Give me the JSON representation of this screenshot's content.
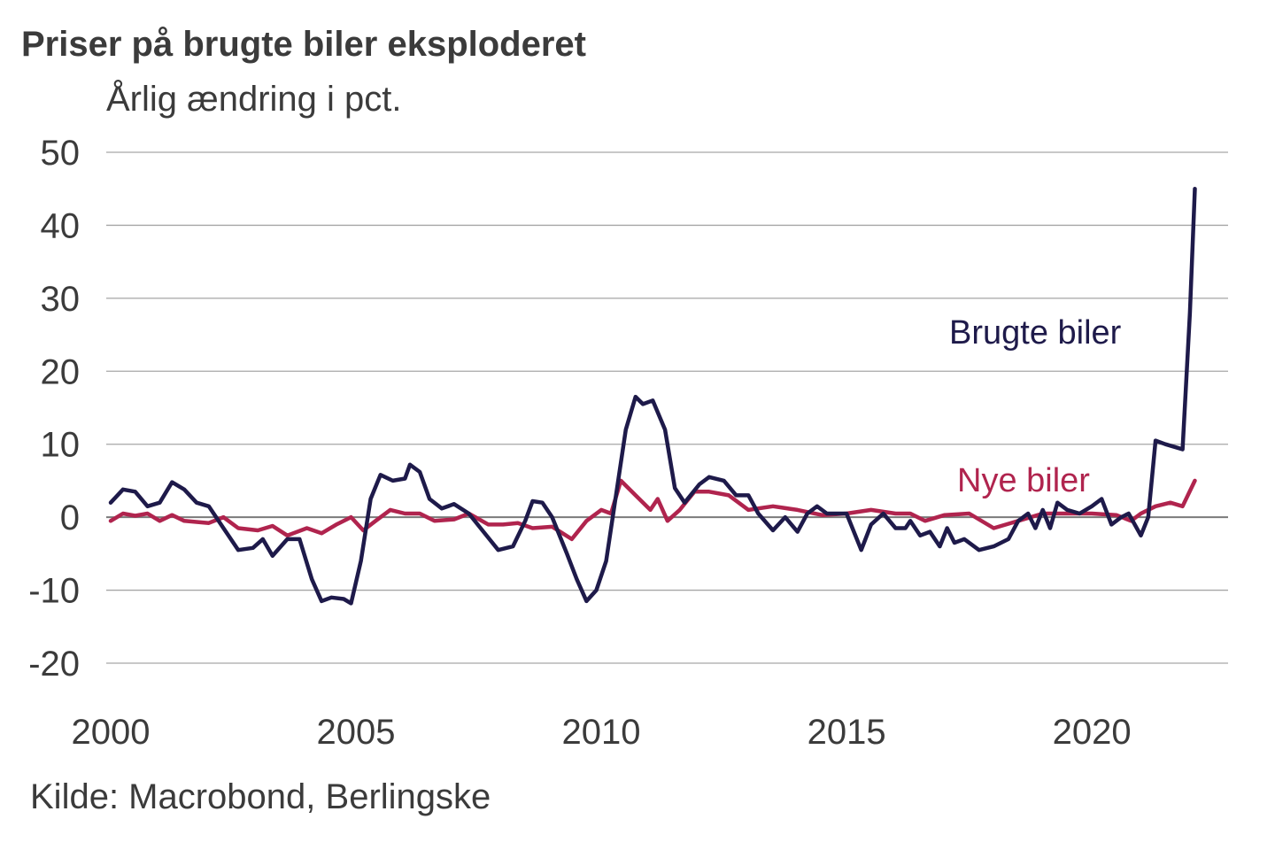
{
  "title": "Priser på brugte biler eksploderet",
  "subtitle": "Årlig ændring i pct.",
  "source": "Kilde: Macrobond, Berlingske",
  "chart_data": {
    "type": "line",
    "title": "Priser på brugte biler eksploderet",
    "ylabel": "Årlig ændring i pct.",
    "xlabel": "",
    "ylim": [
      -20,
      50
    ],
    "xlim": [
      2000,
      2022.2
    ],
    "y_ticks": [
      50,
      40,
      30,
      20,
      10,
      0,
      -10,
      -20
    ],
    "y_tick_labels": [
      "50",
      "40",
      "30",
      "20",
      "10",
      "0",
      "-10",
      "-20"
    ],
    "x_ticks": [
      2000,
      2005,
      2010,
      2015,
      2020
    ],
    "x_tick_labels": [
      "2000",
      "2005",
      "2010",
      "2015",
      "2020"
    ],
    "grid": "horizontal",
    "series": [
      {
        "name": "Brugte biler",
        "color": "#1e1a4a",
        "points": [
          [
            2000.0,
            2
          ],
          [
            2000.25,
            3.8
          ],
          [
            2000.5,
            3.5
          ],
          [
            2000.75,
            1.5
          ],
          [
            2001.0,
            2
          ],
          [
            2001.25,
            4.8
          ],
          [
            2001.5,
            3.8
          ],
          [
            2001.75,
            2
          ],
          [
            2002.0,
            1.5
          ],
          [
            2002.3,
            -1.5
          ],
          [
            2002.6,
            -4.5
          ],
          [
            2002.9,
            -4.2
          ],
          [
            2003.1,
            -3
          ],
          [
            2003.3,
            -5.3
          ],
          [
            2003.6,
            -3
          ],
          [
            2003.85,
            -3
          ],
          [
            2004.1,
            -8.5
          ],
          [
            2004.3,
            -11.5
          ],
          [
            2004.5,
            -11
          ],
          [
            2004.75,
            -11.2
          ],
          [
            2004.9,
            -11.8
          ],
          [
            2005.1,
            -6
          ],
          [
            2005.3,
            2.5
          ],
          [
            2005.5,
            5.8
          ],
          [
            2005.75,
            5
          ],
          [
            2006.0,
            5.3
          ],
          [
            2006.1,
            7.2
          ],
          [
            2006.3,
            6.2
          ],
          [
            2006.5,
            2.5
          ],
          [
            2006.75,
            1.2
          ],
          [
            2007.0,
            1.8
          ],
          [
            2007.3,
            0.5
          ],
          [
            2007.6,
            -2
          ],
          [
            2007.9,
            -4.5
          ],
          [
            2008.2,
            -4
          ],
          [
            2008.45,
            -0.5
          ],
          [
            2008.6,
            2.2
          ],
          [
            2008.8,
            2
          ],
          [
            2009.0,
            0
          ],
          [
            2009.3,
            -5
          ],
          [
            2009.5,
            -8.5
          ],
          [
            2009.7,
            -11.5
          ],
          [
            2009.9,
            -10
          ],
          [
            2010.1,
            -6
          ],
          [
            2010.3,
            3
          ],
          [
            2010.5,
            12
          ],
          [
            2010.7,
            16.5
          ],
          [
            2010.85,
            15.5
          ],
          [
            2011.05,
            16
          ],
          [
            2011.3,
            12
          ],
          [
            2011.5,
            4
          ],
          [
            2011.7,
            2
          ],
          [
            2012.0,
            4.5
          ],
          [
            2012.2,
            5.5
          ],
          [
            2012.5,
            5
          ],
          [
            2012.75,
            3
          ],
          [
            2013.0,
            3
          ],
          [
            2013.2,
            0.5
          ],
          [
            2013.5,
            -1.8
          ],
          [
            2013.75,
            0
          ],
          [
            2014.0,
            -2
          ],
          [
            2014.2,
            0.5
          ],
          [
            2014.4,
            1.5
          ],
          [
            2014.6,
            0.5
          ],
          [
            2015.0,
            0.5
          ],
          [
            2015.3,
            -4.5
          ],
          [
            2015.5,
            -1
          ],
          [
            2015.75,
            0.5
          ],
          [
            2016.0,
            -1.5
          ],
          [
            2016.2,
            -1.5
          ],
          [
            2016.3,
            -0.5
          ],
          [
            2016.5,
            -2.5
          ],
          [
            2016.7,
            -2
          ],
          [
            2016.9,
            -4
          ],
          [
            2017.05,
            -1.5
          ],
          [
            2017.2,
            -3.5
          ],
          [
            2017.4,
            -3
          ],
          [
            2017.7,
            -4.5
          ],
          [
            2018.0,
            -4
          ],
          [
            2018.3,
            -3
          ],
          [
            2018.5,
            -0.5
          ],
          [
            2018.7,
            0.5
          ],
          [
            2018.85,
            -1.5
          ],
          [
            2019.0,
            1
          ],
          [
            2019.15,
            -1.5
          ],
          [
            2019.3,
            2
          ],
          [
            2019.5,
            1
          ],
          [
            2019.75,
            0.5
          ],
          [
            2020.0,
            1.5
          ],
          [
            2020.2,
            2.5
          ],
          [
            2020.4,
            -1
          ],
          [
            2020.6,
            0
          ],
          [
            2020.75,
            0.5
          ],
          [
            2021.0,
            -2.5
          ],
          [
            2021.15,
            0
          ],
          [
            2021.3,
            10.5
          ],
          [
            2021.5,
            10
          ],
          [
            2021.75,
            9.5
          ],
          [
            2021.85,
            9.3
          ],
          [
            2022.0,
            28
          ],
          [
            2022.1,
            45
          ]
        ]
      },
      {
        "name": "Nye biler",
        "color": "#b0244e",
        "points": [
          [
            2000.0,
            -0.5
          ],
          [
            2000.25,
            0.5
          ],
          [
            2000.5,
            0.2
          ],
          [
            2000.75,
            0.5
          ],
          [
            2001.0,
            -0.5
          ],
          [
            2001.25,
            0.3
          ],
          [
            2001.5,
            -0.5
          ],
          [
            2002.0,
            -0.8
          ],
          [
            2002.3,
            0
          ],
          [
            2002.6,
            -1.5
          ],
          [
            2003.0,
            -1.8
          ],
          [
            2003.3,
            -1.2
          ],
          [
            2003.6,
            -2.5
          ],
          [
            2004.0,
            -1.5
          ],
          [
            2004.3,
            -2.2
          ],
          [
            2004.6,
            -1
          ],
          [
            2004.9,
            0
          ],
          [
            2005.15,
            -1.8
          ],
          [
            2005.4,
            -0.5
          ],
          [
            2005.7,
            1
          ],
          [
            2006.0,
            0.5
          ],
          [
            2006.3,
            0.5
          ],
          [
            2006.6,
            -0.5
          ],
          [
            2007.0,
            -0.3
          ],
          [
            2007.3,
            0.5
          ],
          [
            2007.7,
            -1
          ],
          [
            2008.0,
            -1
          ],
          [
            2008.3,
            -0.8
          ],
          [
            2008.6,
            -1.5
          ],
          [
            2009.0,
            -1.3
          ],
          [
            2009.4,
            -3
          ],
          [
            2009.7,
            -0.5
          ],
          [
            2010.0,
            1
          ],
          [
            2010.2,
            0.5
          ],
          [
            2010.4,
            5
          ],
          [
            2010.7,
            3
          ],
          [
            2011.0,
            1
          ],
          [
            2011.15,
            2.5
          ],
          [
            2011.35,
            -0.5
          ],
          [
            2011.6,
            1
          ],
          [
            2011.9,
            3.5
          ],
          [
            2012.2,
            3.5
          ],
          [
            2012.6,
            3
          ],
          [
            2013.0,
            1
          ],
          [
            2013.5,
            1.5
          ],
          [
            2014.0,
            1
          ],
          [
            2014.5,
            0.3
          ],
          [
            2015.0,
            0.5
          ],
          [
            2015.5,
            1
          ],
          [
            2016.0,
            0.5
          ],
          [
            2016.3,
            0.5
          ],
          [
            2016.6,
            -0.5
          ],
          [
            2017.0,
            0.3
          ],
          [
            2017.5,
            0.5
          ],
          [
            2018.0,
            -1.5
          ],
          [
            2018.5,
            -0.5
          ],
          [
            2019.0,
            0.5
          ],
          [
            2019.5,
            0.5
          ],
          [
            2020.0,
            0.5
          ],
          [
            2020.5,
            0.3
          ],
          [
            2020.8,
            -0.5
          ],
          [
            2021.0,
            0.5
          ],
          [
            2021.3,
            1.5
          ],
          [
            2021.6,
            2
          ],
          [
            2021.85,
            1.5
          ],
          [
            2022.1,
            5
          ]
        ]
      }
    ]
  }
}
